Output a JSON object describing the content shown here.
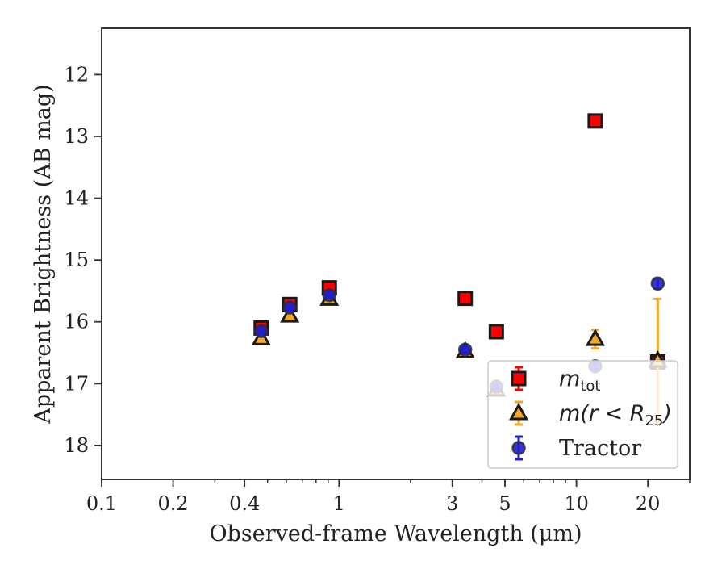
{
  "chart_data": {
    "type": "scatter",
    "xlabel": "Observed-frame Wavelength (μm)",
    "ylabel": "Apparent Brightness (AB mag)",
    "xscale": "log",
    "yaxis_inverted": true,
    "xlim": [
      0.1,
      30
    ],
    "ylim": [
      18.55,
      11.25
    ],
    "xticks": [
      {
        "value": 0.1,
        "label": "0.1"
      },
      {
        "value": 0.2,
        "label": "0.2"
      },
      {
        "value": 0.4,
        "label": "0.4"
      },
      {
        "value": 1,
        "label": "1"
      },
      {
        "value": 3,
        "label": "3"
      },
      {
        "value": 5,
        "label": "5"
      },
      {
        "value": 10,
        "label": "10"
      },
      {
        "value": 20,
        "label": "20"
      }
    ],
    "yticks": [
      {
        "value": 12,
        "label": "12"
      },
      {
        "value": 13,
        "label": "13"
      },
      {
        "value": 14,
        "label": "14"
      },
      {
        "value": 15,
        "label": "15"
      },
      {
        "value": 16,
        "label": "16"
      },
      {
        "value": 17,
        "label": "17"
      },
      {
        "value": 18,
        "label": "18"
      }
    ],
    "grid": false,
    "legend_position": "lower-right",
    "series": [
      {
        "id": "mtot",
        "name": "m_tot",
        "marker": "square",
        "face_color": "#ff0000",
        "edge_color": "#1a1a1a",
        "err_color": "#ff0000",
        "points": [
          {
            "x": 0.47,
            "y": 16.1,
            "err": 0.04
          },
          {
            "x": 0.62,
            "y": 15.72,
            "err": 0.04
          },
          {
            "x": 0.91,
            "y": 15.45,
            "err": 0.04
          },
          {
            "x": 3.4,
            "y": 15.62,
            "err": 0.04
          },
          {
            "x": 4.6,
            "y": 16.16,
            "err": 0.04
          },
          {
            "x": 12.0,
            "y": 12.75,
            "err": 0.04
          },
          {
            "x": 22.0,
            "y": 16.65,
            "err": 0.04
          }
        ]
      },
      {
        "id": "mr25",
        "name": "m(r < R25)",
        "marker": "triangle",
        "face_color": "#f5a623",
        "edge_color": "#1a1a1a",
        "err_color": "#f5a623",
        "points": [
          {
            "x": 0.47,
            "y": 16.27,
            "err": 0.03
          },
          {
            "x": 0.62,
            "y": 15.9,
            "err": 0.03
          },
          {
            "x": 0.91,
            "y": 15.63,
            "err": 0.03
          },
          {
            "x": 3.4,
            "y": 16.48,
            "err": 0.03
          },
          {
            "x": 4.6,
            "y": 17.1,
            "err": 0.05
          },
          {
            "x": 12.0,
            "y": 16.28,
            "err": 0.15
          },
          {
            "x": 22.0,
            "y": 16.63,
            "err": 1.0
          }
        ]
      },
      {
        "id": "tractor",
        "name": "Tractor",
        "marker": "circle",
        "face_color": "#1f1fd1",
        "edge_color": "#2e2e2e",
        "err_color": "#1f1fd1",
        "points": [
          {
            "x": 0.47,
            "y": 16.15,
            "err": 0.03
          },
          {
            "x": 0.62,
            "y": 15.77,
            "err": 0.03
          },
          {
            "x": 0.91,
            "y": 15.57,
            "err": 0.03
          },
          {
            "x": 3.4,
            "y": 16.45,
            "err": 0.05
          },
          {
            "x": 4.6,
            "y": 17.05,
            "err": 0.05
          },
          {
            "x": 12.0,
            "y": 16.72,
            "err": 0.05
          },
          {
            "x": 22.0,
            "y": 15.38,
            "err": 0.08
          }
        ]
      }
    ],
    "legend": [
      {
        "series": "mtot",
        "label_main": "m",
        "label_sub": "tot"
      },
      {
        "series": "mr25",
        "label_main": "m(r < R",
        "label_sub": "25",
        "label_tail": ")"
      },
      {
        "series": "tractor",
        "label_main": "Tractor"
      }
    ]
  }
}
